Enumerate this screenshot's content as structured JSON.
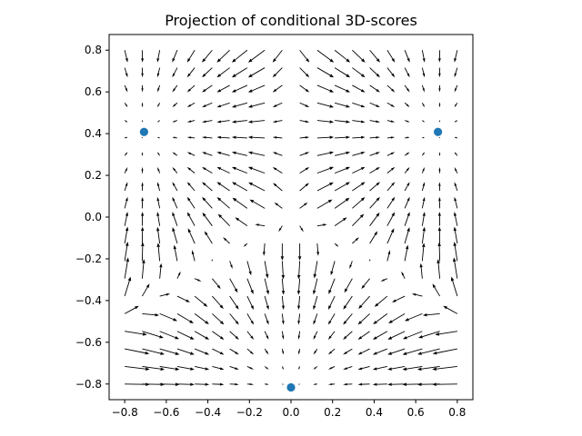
{
  "chart_data": {
    "type": "scatter",
    "title": "Projection of conditional 3D-scores",
    "xlabel": "",
    "ylabel": "",
    "xlim": [
      -0.875,
      0.875
    ],
    "ylim": [
      -0.875,
      0.875
    ],
    "x_ticks": [
      -0.8,
      -0.6,
      -0.4,
      -0.2,
      0.0,
      0.2,
      0.4,
      0.6,
      0.8
    ],
    "y_ticks": [
      -0.8,
      -0.6,
      -0.4,
      -0.2,
      0.0,
      0.2,
      0.4,
      0.6,
      0.8
    ],
    "x_tick_labels": [
      "−0.8",
      "−0.6",
      "−0.4",
      "−0.2",
      "0.0",
      "0.2",
      "0.4",
      "0.6",
      "0.8"
    ],
    "y_tick_labels": [
      "−0.8",
      "−0.6",
      "−0.4",
      "−0.2",
      "0.0",
      "0.2",
      "0.4",
      "0.6",
      "0.8"
    ],
    "grid": false,
    "points": [
      {
        "x": -0.707,
        "y": 0.408
      },
      {
        "x": 0.707,
        "y": 0.408
      },
      {
        "x": 0.0,
        "y": -0.816
      }
    ],
    "point_color": "#1f77b4",
    "vector_field": {
      "type": "quiver",
      "x_range": [
        -0.8,
        0.8
      ],
      "y_range": [
        -0.8,
        0.8
      ],
      "grid_count": 20,
      "color": "#000000"
    }
  }
}
